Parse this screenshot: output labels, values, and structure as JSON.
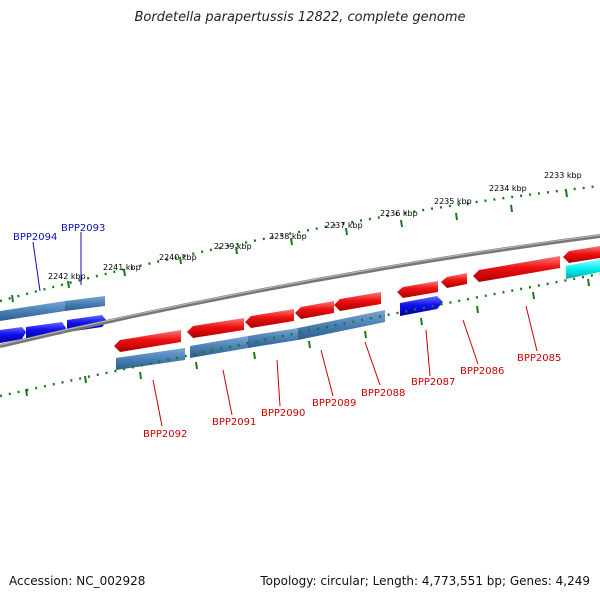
{
  "title": "Bordetella parapertussis 12822, complete genome",
  "footer": {
    "accession": "Accession: NC_002928",
    "stats": "Topology: circular; Length: 4,773,551 bp; Genes: 4,249"
  },
  "scale_labels": [
    "2242 kbp",
    "2241 kbp",
    "2240 kbp",
    "2239 kbp",
    "2238 kbp",
    "2237 kbp",
    "2236 kbp",
    "2235 kbp",
    "2234 kbp",
    "2233 kbp"
  ],
  "gene_labels": [
    {
      "id": "BPP2094",
      "strand": "plus"
    },
    {
      "id": "BPP2093",
      "strand": "plus"
    },
    {
      "id": "BPP2092",
      "strand": "minus"
    },
    {
      "id": "BPP2091",
      "strand": "minus"
    },
    {
      "id": "BPP2090",
      "strand": "minus"
    },
    {
      "id": "BPP2089",
      "strand": "minus"
    },
    {
      "id": "BPP2088",
      "strand": "minus"
    },
    {
      "id": "BPP2087",
      "strand": "minus"
    },
    {
      "id": "BPP2086",
      "strand": "minus"
    },
    {
      "id": "BPP2085",
      "strand": "minus"
    }
  ],
  "colors": {
    "plus_label": "#1010b0",
    "minus_label": "#cc0000",
    "gene_red": "#ee1111",
    "gene_blue": "#1010ee",
    "gene_steel": "#4a7fb5",
    "gene_cyan": "#00eeee",
    "backbone": "#777777",
    "scale": "#1a7a1a"
  }
}
